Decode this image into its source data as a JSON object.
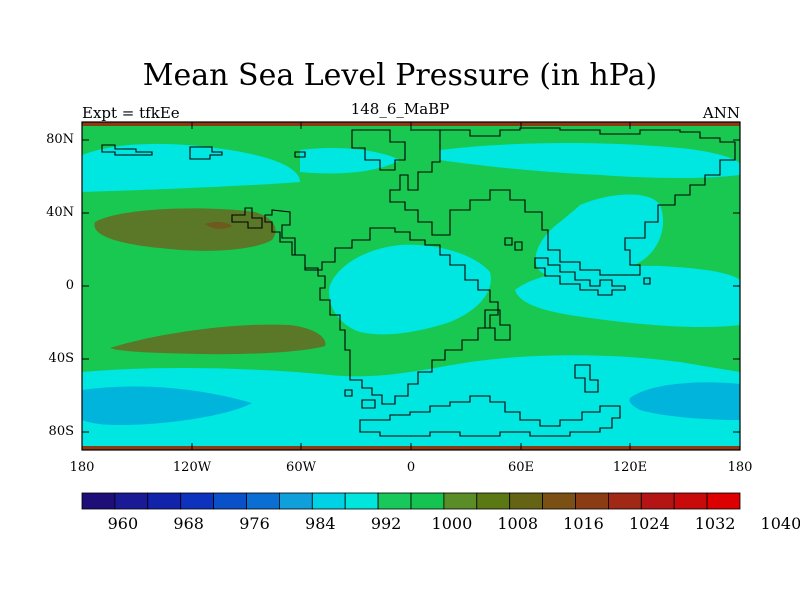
{
  "title": "Mean Sea Level Pressure (in hPa)",
  "subtitle_left": "Expt = tfkEe",
  "subtitle_center": "148_6_MaBP",
  "subtitle_right": "ANN",
  "x_ticks": [
    "180",
    "120W",
    "60W",
    "0",
    "60E",
    "120E",
    "180"
  ],
  "y_ticks": [
    "80N",
    "40N",
    "0",
    "40S",
    "80S"
  ],
  "colorbar": {
    "labels": [
      "960",
      "968",
      "976",
      "984",
      "992",
      "1000",
      "1008",
      "1016",
      "1024",
      "1032",
      "1040"
    ],
    "colors": [
      "#1e0f78",
      "#1a1a96",
      "#1023aa",
      "#0c32be",
      "#0a50c8",
      "#0a6ed2",
      "#0fa0dc",
      "#00d2e6",
      "#00e6dc",
      "#19c85a",
      "#14c350",
      "#5a8c28",
      "#5a7814",
      "#646414",
      "#7a5014",
      "#8c3c14",
      "#a02814",
      "#b41414",
      "#c80a0a",
      "#dc0000"
    ]
  },
  "colors": {
    "ocean_high": "#19c850",
    "low_cyan": "#00e6e1",
    "low_blue": "#00b4dc",
    "high_brown": "#5a7828",
    "high_darker": "#6e5a1e",
    "frame_band": "#8b3a14"
  }
}
